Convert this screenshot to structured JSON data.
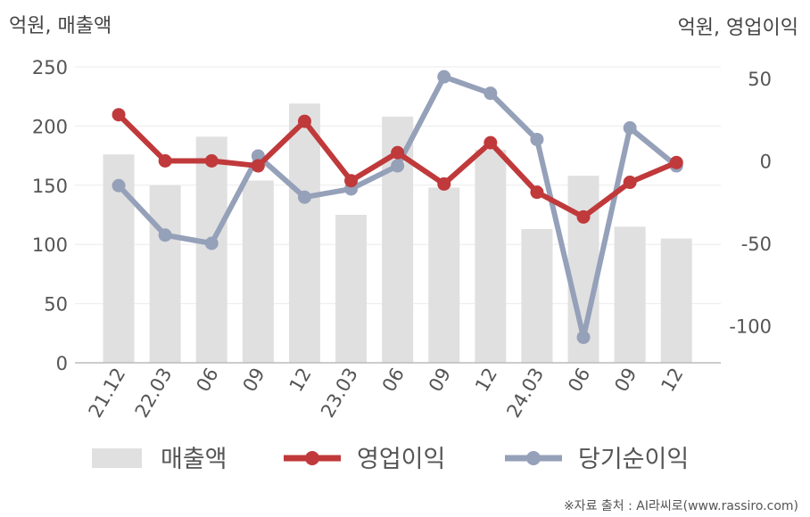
{
  "chart_data": {
    "type": "bar+line",
    "categories": [
      "21.12",
      "22.03",
      "06",
      "09",
      "12",
      "23.03",
      "06",
      "09",
      "12",
      "24.03",
      "06",
      "09",
      "12"
    ],
    "left_axis": {
      "label": "억원, 매출액",
      "ylim": [
        0,
        250
      ],
      "ticks": [
        "0",
        "50",
        "100",
        "150",
        "200",
        "250"
      ]
    },
    "right_axis": {
      "label": "억원, 영업이익",
      "ylim": [
        -125,
        62
      ],
      "ticks": [
        "-100",
        "-50",
        "0",
        "50"
      ]
    },
    "series": [
      {
        "name": "매출액",
        "kind": "bar",
        "axis": "left",
        "color": "#e0e0e0",
        "values": [
          176,
          150,
          191,
          154,
          219,
          125,
          208,
          148,
          180,
          113,
          158,
          115,
          105
        ]
      },
      {
        "name": "영업이익",
        "kind": "line",
        "axis": "right",
        "color": "#c0393b",
        "values": [
          28,
          0,
          0,
          -3,
          24,
          -12,
          5,
          -14,
          11,
          -19,
          -34,
          -13,
          -1
        ]
      },
      {
        "name": "당기순이익",
        "kind": "line",
        "axis": "right",
        "color": "#95a0b9",
        "values": [
          -15,
          -45,
          -50,
          3,
          -22,
          -17,
          -3,
          51,
          41,
          13,
          -107,
          20,
          -3
        ]
      }
    ],
    "grid": true,
    "legend_position": "bottom",
    "source": "※자료 출처 : AI라씨로(www.rassiro.com)"
  }
}
